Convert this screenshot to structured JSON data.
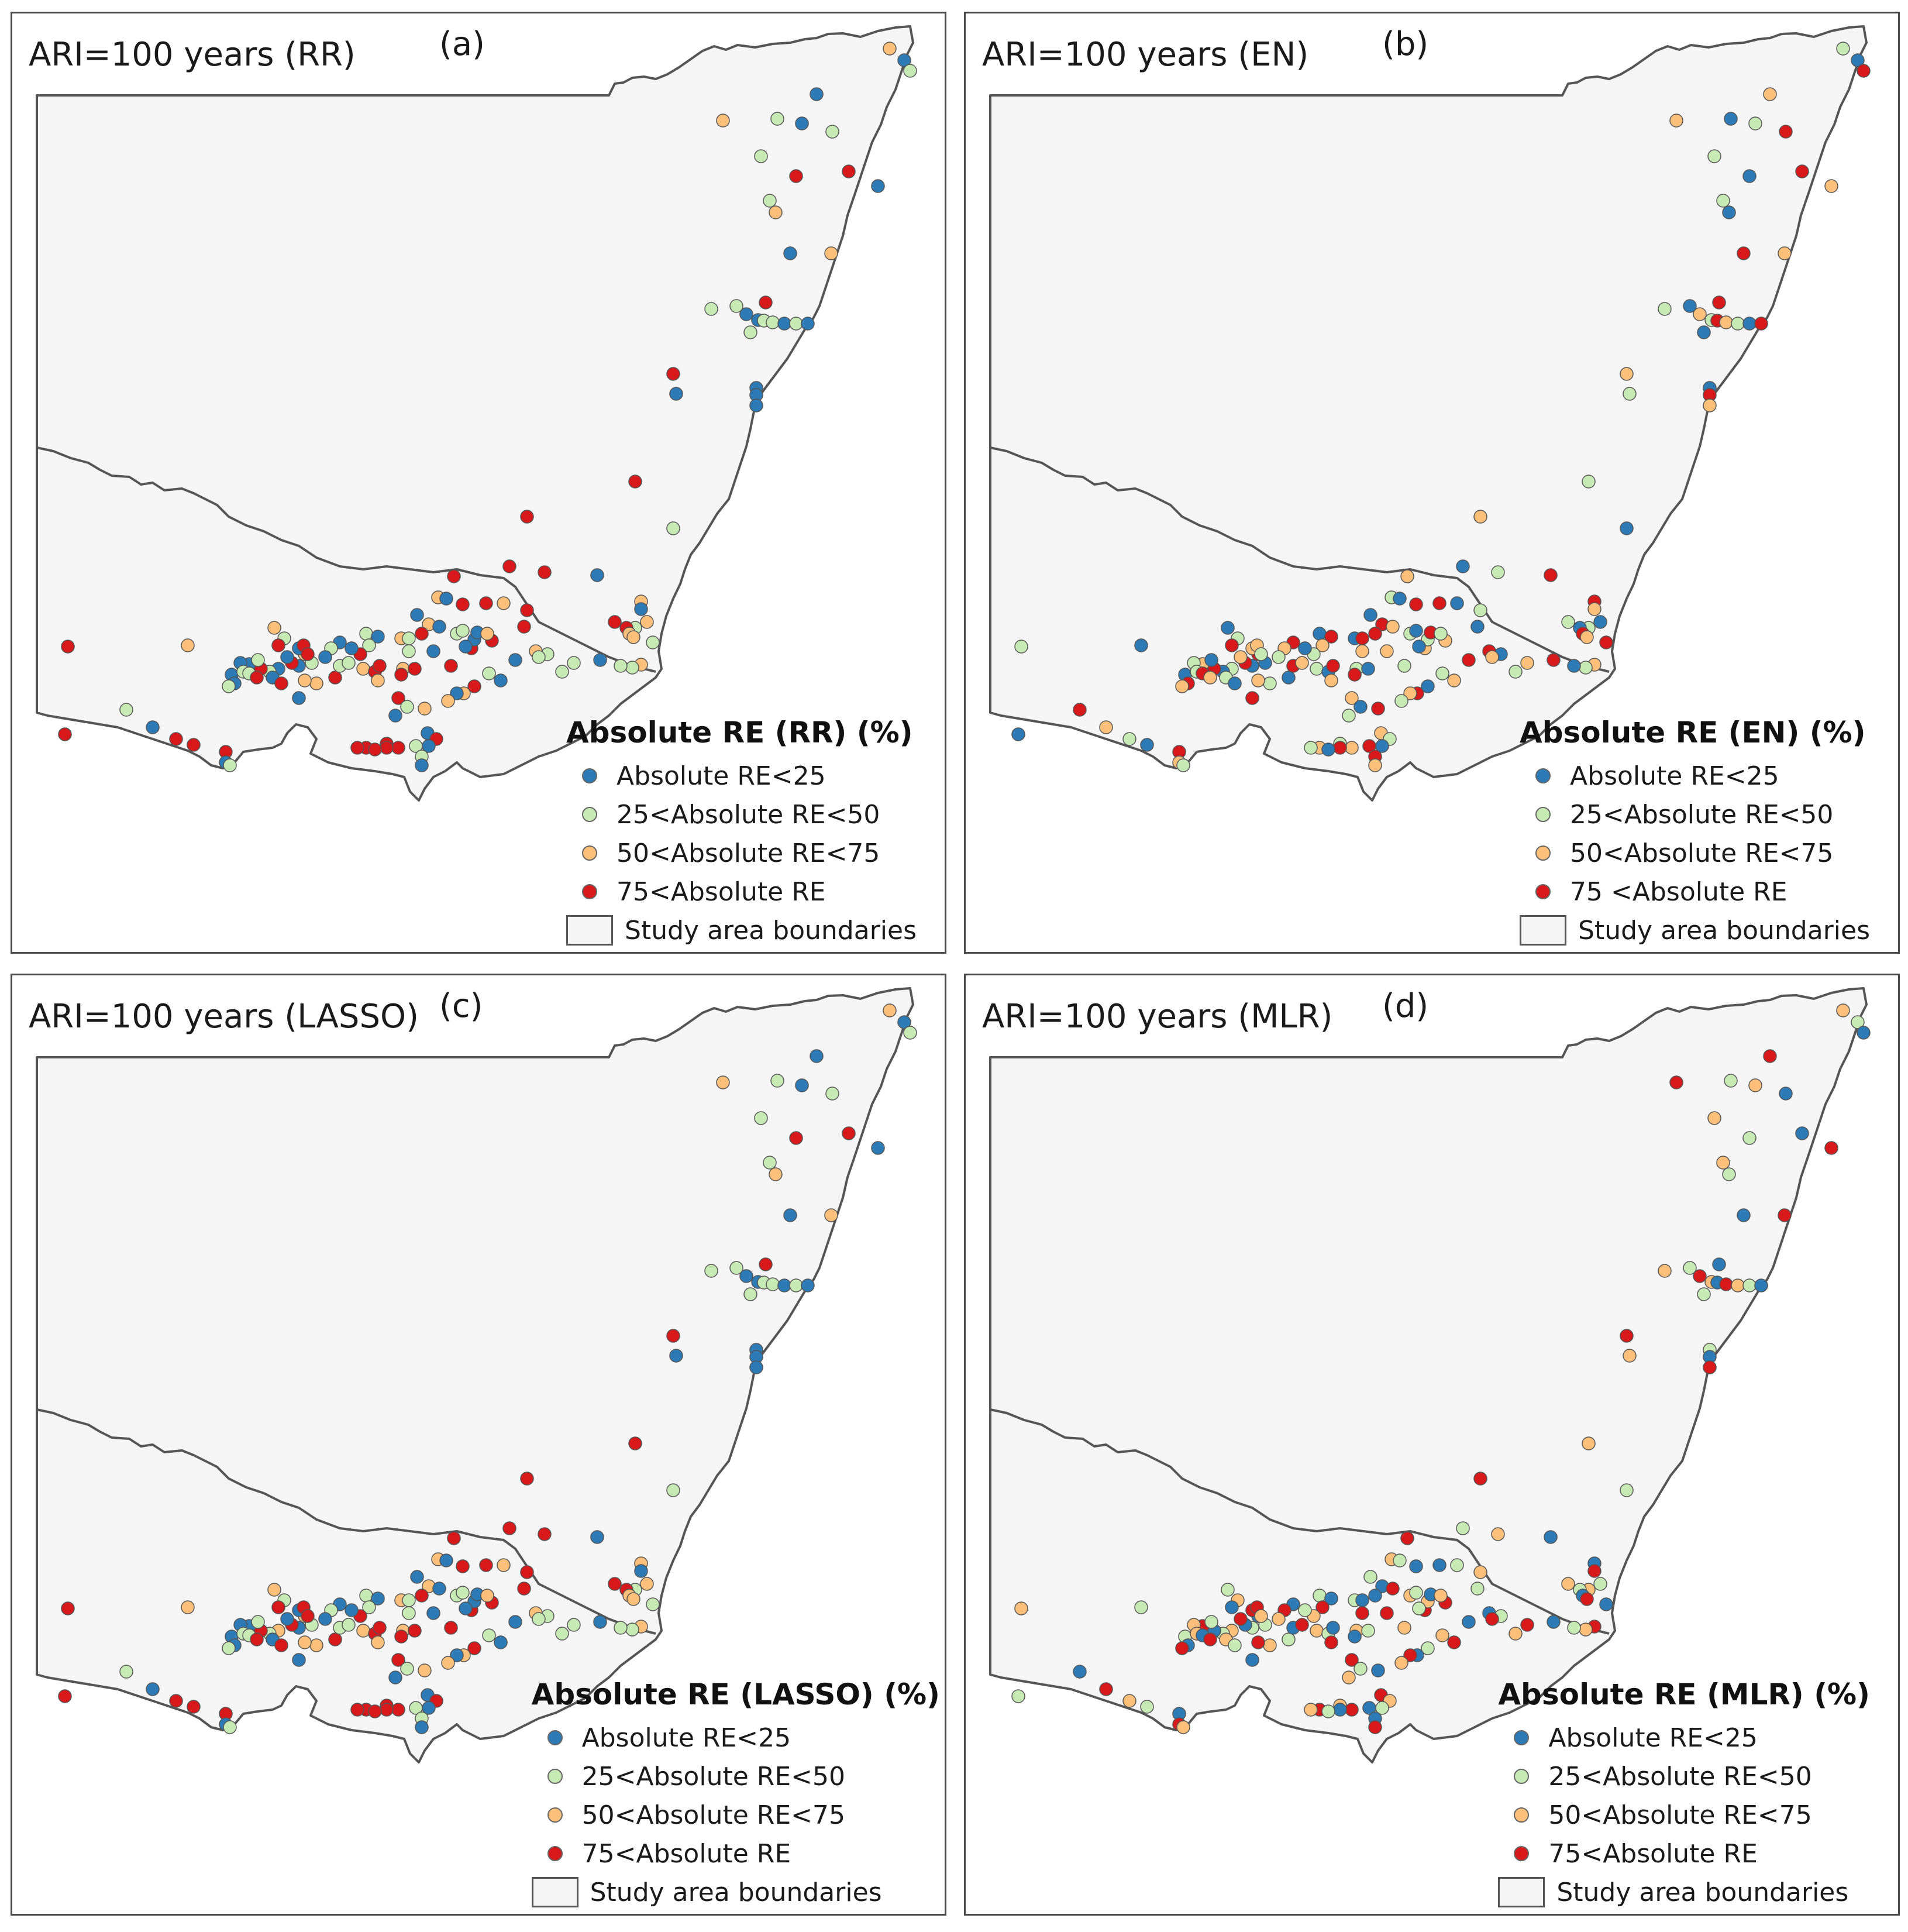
{
  "legend_common": {
    "classes": [
      {
        "label": "Absolute RE<25",
        "color": "#2c7bb6"
      },
      {
        "label": "25<Absolute RE<50",
        "color": "#c7e9b4"
      },
      {
        "label": "50<Absolute RE<75",
        "color": "#fdc07a"
      },
      {
        "label": "75<Absolute RE",
        "color": "#d7191c"
      }
    ],
    "boundary_label": "Study area boundaries",
    "boundary_fill": "#f5f5f5",
    "boundary_stroke": "#555555"
  },
  "panels": [
    {
      "id": "a",
      "title": "ARI=100 years (RR)",
      "label": "(a)",
      "legend_title": "Absolute RE (RR) (%)",
      "class_labels": [
        "Absolute RE<25",
        "25<Absolute RE<50",
        "50<Absolute RE<75",
        "75<Absolute RE"
      ]
    },
    {
      "id": "b",
      "title": "ARI=100 years (EN)",
      "label": "(b)",
      "legend_title": "Absolute RE (EN) (%)",
      "class_labels": [
        "Absolute RE<25",
        "25<Absolute RE<50",
        "50<Absolute RE<75",
        "75 <Absolute RE"
      ]
    },
    {
      "id": "c",
      "title": "ARI=100 years (LASSO)",
      "label": "(c)",
      "legend_title": "Absolute RE (LASSO) (%)",
      "class_labels": [
        "Absolute RE<25",
        "25<Absolute RE<50",
        "50<Absolute RE<75",
        "75<Absolute RE"
      ]
    },
    {
      "id": "d",
      "title": "ARI=100 years (MLR)",
      "label": "(d)",
      "legend_title": "Absolute RE (MLR) (%)",
      "class_labels": [
        "Absolute RE<25",
        "25<Absolute RE<50",
        "50<Absolute RE<75",
        "75<Absolute RE"
      ]
    }
  ],
  "panel_a_class_counts": {
    "lt25": 62,
    "25to50": 48,
    "50to75": 26,
    "gt75": 44
  }
}
